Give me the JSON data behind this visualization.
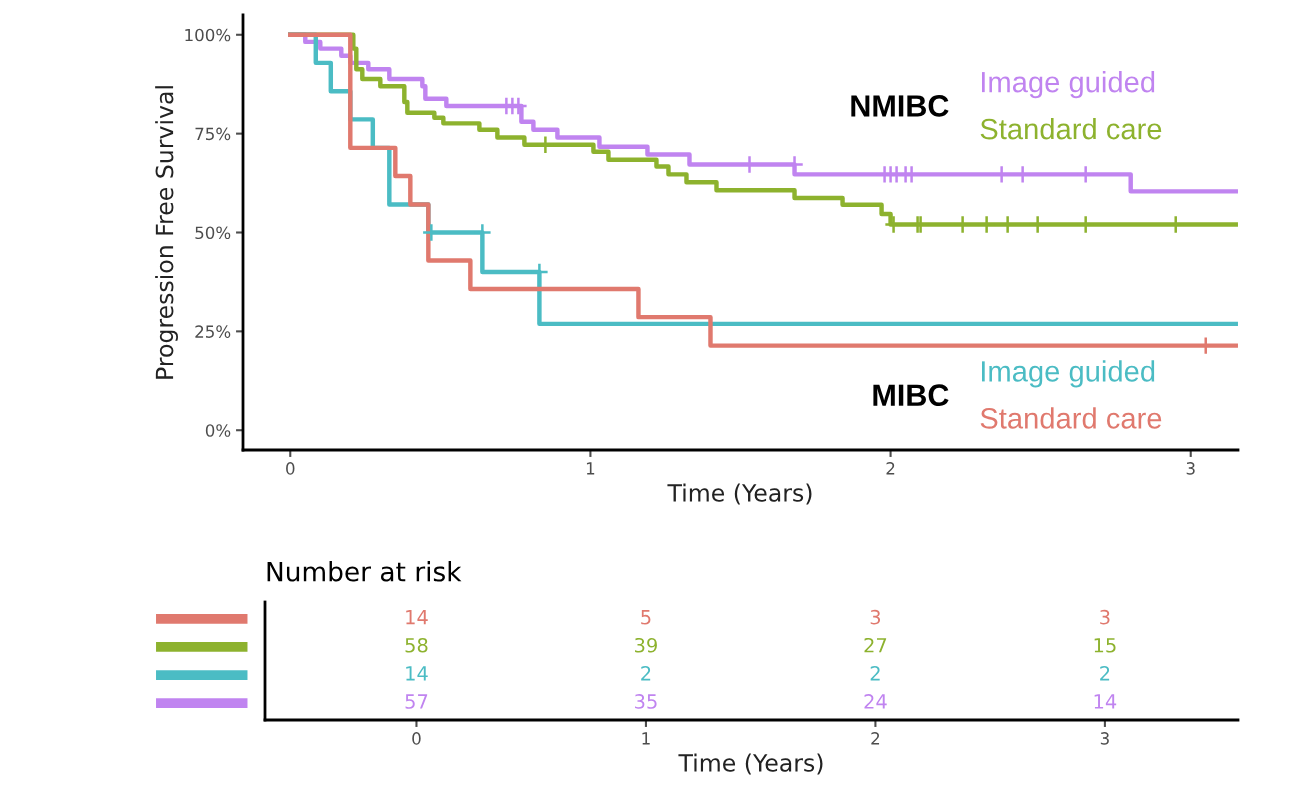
{
  "chart_data": [
    {
      "type": "step",
      "xlabel": "Time (Years)",
      "ylabel": "Progression Free Survival",
      "xlim": [
        -0.1575,
        3.1575
      ],
      "xticks": [
        0,
        1,
        2,
        3
      ],
      "ylim": [
        -5,
        105
      ],
      "yticks": [
        {
          "value": 0,
          "label": "0%"
        },
        {
          "value": 25,
          "label": "25%"
        },
        {
          "value": 50,
          "label": "50%"
        },
        {
          "value": 75,
          "label": "75%"
        },
        {
          "value": 100,
          "label": "100%"
        }
      ],
      "annotations": [
        "NMIBC",
        "MIBC"
      ],
      "grid": false,
      "legend": false,
      "line_style": "solid",
      "series": [
        {
          "name": "Image guided",
          "color": "#c084f0",
          "x": [
            0,
            0.05,
            0.1,
            0.17,
            0.2,
            0.26,
            0.33,
            0.44,
            0.45,
            0.52,
            0.77,
            0.81,
            0.89,
            1.03,
            1.19,
            1.33,
            1.68,
            2.8,
            3.15
          ],
          "values": [
            100,
            98.2,
            96.5,
            94.7,
            92.9,
            91.3,
            88.8,
            87,
            83.8,
            82,
            78,
            76,
            74,
            71.7,
            69.7,
            67.2,
            64.7,
            60.4,
            60.4
          ]
        },
        {
          "name": "Standard care",
          "color": "#8db22e",
          "x": [
            0,
            0.21,
            0.22,
            0.24,
            0.3,
            0.38,
            0.39,
            0.48,
            0.51,
            0.63,
            0.69,
            0.78,
            1.01,
            1.06,
            1.22,
            1.26,
            1.32,
            1.42,
            1.68,
            1.84,
            1.97,
            2.0,
            3.15
          ],
          "values": [
            100,
            96.5,
            91.3,
            88.8,
            87,
            83,
            80.3,
            79,
            77.6,
            76,
            74,
            72.2,
            70.4,
            68.4,
            66.7,
            64.7,
            62.7,
            60.7,
            58.7,
            57,
            54.7,
            52,
            52
          ]
        },
        {
          "name": "Image guided",
          "color": "#4bbcc4",
          "x": [
            0,
            0.085,
            0.135,
            0.2,
            0.275,
            0.33,
            0.46,
            0.64,
            0.83,
            3.15
          ],
          "values": [
            100,
            92.9,
            85.7,
            78.6,
            71.4,
            57.1,
            50,
            40,
            26.9,
            26.9
          ]
        },
        {
          "name": "Standard care",
          "color": "#e0796e",
          "x": [
            0,
            0.2,
            0.35,
            0.4,
            0.46,
            0.6,
            1.16,
            1.4,
            3.15
          ],
          "values": [
            100,
            71.4,
            64.3,
            57.1,
            42.9,
            35.7,
            28.6,
            21.4,
            21.4
          ]
        },
        {
          "type": "scatter",
          "marker": "cross",
          "color": "#c084f0",
          "x": [
            0.72,
            0.74,
            0.76,
            1.53,
            1.68,
            1.98,
            2.0,
            2.02,
            2.05,
            2.07,
            2.37,
            2.44,
            2.65
          ],
          "values": [
            82,
            82,
            82,
            67.2,
            67.2,
            64.7,
            64.7,
            64.7,
            64.7,
            64.7,
            64.7,
            64.7,
            64.7
          ]
        },
        {
          "type": "scatter",
          "marker": "cross",
          "color": "#8db22e",
          "x": [
            0.85,
            2.01,
            2.09,
            2.1,
            2.24,
            2.32,
            2.39,
            2.49,
            2.65,
            2.95
          ],
          "values": [
            72.2,
            52,
            52,
            52,
            52,
            52,
            52,
            52,
            52,
            52
          ]
        },
        {
          "type": "scatter",
          "marker": "cross",
          "color": "#4bbcc4",
          "x": [
            0.47,
            0.64,
            0.83
          ],
          "values": [
            50,
            50,
            40
          ]
        },
        {
          "type": "scatter",
          "marker": "cross",
          "color": "#e0796e",
          "x": [
            3.05
          ],
          "values": [
            21.4
          ]
        }
      ]
    },
    {
      "type": "heatmap",
      "title": "Number at risk",
      "xlabel": "Time (Years)",
      "categories": [
        "0",
        "1",
        "2",
        "3"
      ],
      "y_categories": [
        null,
        null,
        null,
        null
      ],
      "colors": [
        "#e0796e",
        "#8db22e",
        "#4bbcc4",
        "#c084f0"
      ],
      "data_labels": true,
      "cells": [
        [
          14,
          5,
          3,
          3
        ],
        [
          58,
          39,
          27,
          15
        ],
        [
          14,
          2,
          2,
          2
        ],
        [
          57,
          35,
          24,
          14
        ]
      ]
    }
  ]
}
